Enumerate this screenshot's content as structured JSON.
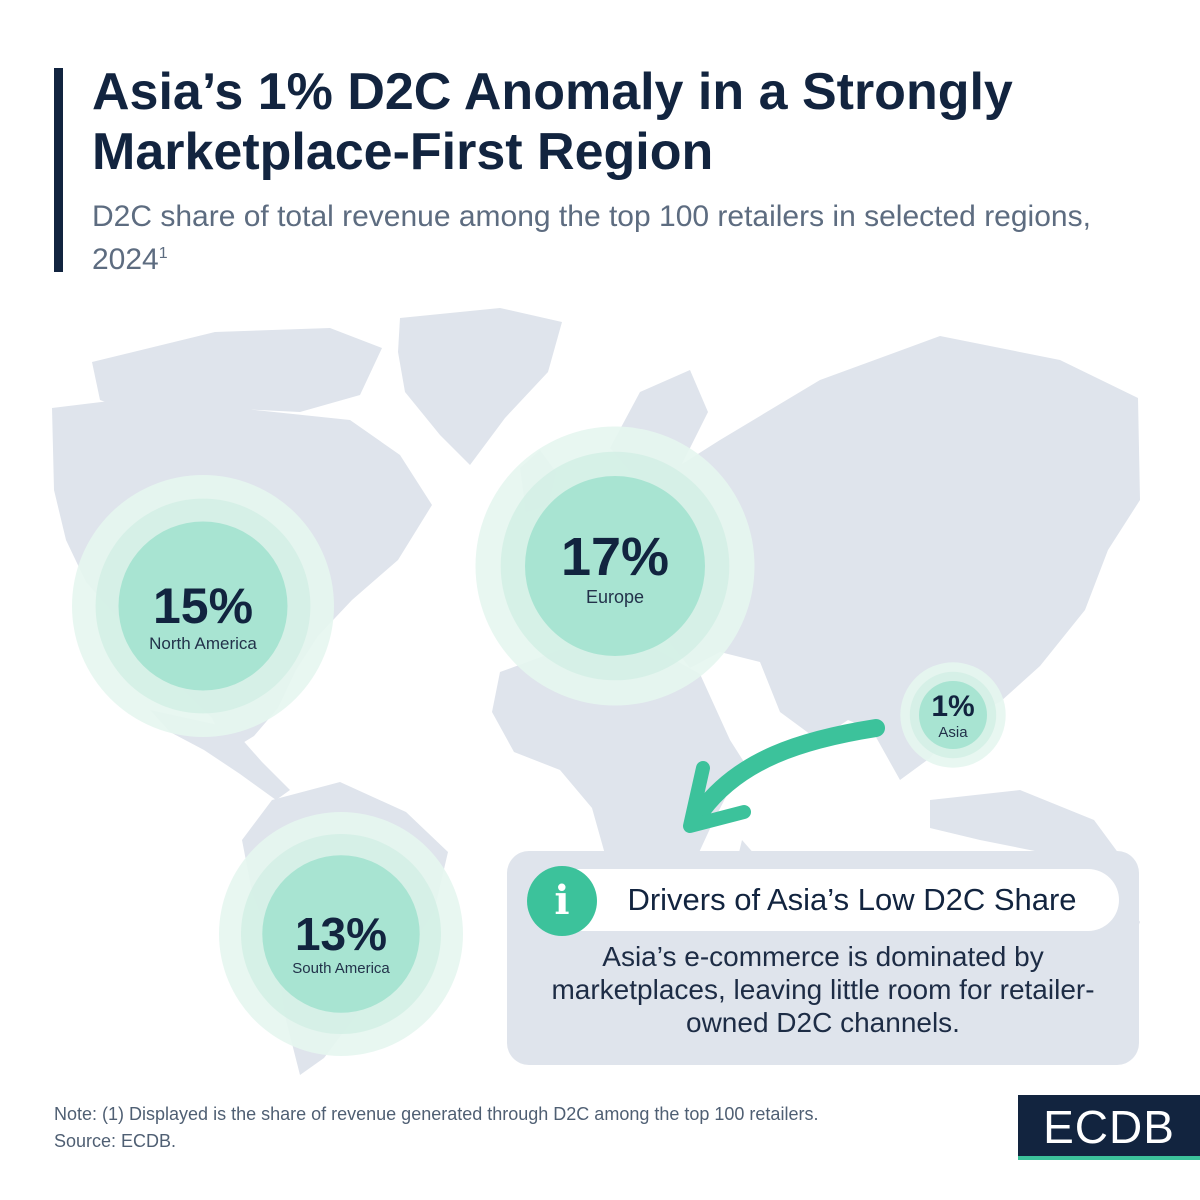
{
  "header": {
    "title": "Asia’s 1% D2C Anomaly in a Strongly Marketplace-First Region",
    "subtitle": "D2C share of total revenue among the top 100 retailers in selected regions, 2024",
    "subtitle_footnote": "1"
  },
  "chart_data": {
    "type": "bubble-map",
    "categories": [
      "North America",
      "Europe",
      "Asia",
      "South America"
    ],
    "values": [
      15,
      17,
      1,
      13
    ],
    "value_labels": [
      "15%",
      "17%",
      "1%",
      "13%"
    ],
    "unit": "%"
  },
  "callout": {
    "icon": "info-icon",
    "heading": "Drivers of Asia’s Low D2C Share",
    "body": "Asia’s e-commerce is dominated by marketplaces, leaving little room for retailer-owned D2C channels."
  },
  "footer": {
    "note": "Note: (1) Displayed is the share of revenue generated through D2C among the top 100 retailers.",
    "source": "Source: ECDB."
  },
  "brand": {
    "logo_text": "ECDB"
  },
  "colors": {
    "navy": "#12243f",
    "land": "#dfe4ec",
    "bubble_core": "#a8e4d2",
    "bubble_halo": "#e6f6f0",
    "accent_green": "#3cc29b",
    "subtitle_gray": "#5d6c80"
  }
}
